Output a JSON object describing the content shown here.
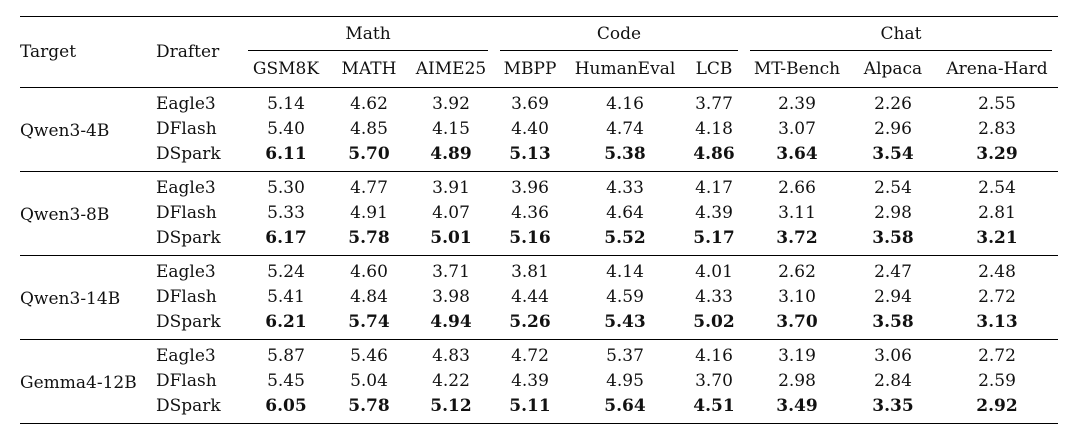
{
  "header": {
    "target": "Target",
    "drafter": "Drafter",
    "groups": [
      {
        "label": "Math",
        "columns": [
          "GSM8K",
          "MATH",
          "AIME25"
        ]
      },
      {
        "label": "Code",
        "columns": [
          "MBPP",
          "HumanEval",
          "LCB"
        ]
      },
      {
        "label": "Chat",
        "columns": [
          "MT-Bench",
          "Alpaca",
          "Arena-Hard"
        ]
      }
    ]
  },
  "rows": [
    {
      "target": "Qwen3-4B",
      "drafters": [
        {
          "name": "Eagle3",
          "values": [
            "5.14",
            "4.62",
            "3.92",
            "3.69",
            "4.16",
            "3.77",
            "2.39",
            "2.26",
            "2.55"
          ],
          "bold": false
        },
        {
          "name": "DFlash",
          "values": [
            "5.40",
            "4.85",
            "4.15",
            "4.40",
            "4.74",
            "4.18",
            "3.07",
            "2.96",
            "2.83"
          ],
          "bold": false
        },
        {
          "name": "DSpark",
          "values": [
            "6.11",
            "5.70",
            "4.89",
            "5.13",
            "5.38",
            "4.86",
            "3.64",
            "3.54",
            "3.29"
          ],
          "bold": true
        }
      ]
    },
    {
      "target": "Qwen3-8B",
      "drafters": [
        {
          "name": "Eagle3",
          "values": [
            "5.30",
            "4.77",
            "3.91",
            "3.96",
            "4.33",
            "4.17",
            "2.66",
            "2.54",
            "2.54"
          ],
          "bold": false
        },
        {
          "name": "DFlash",
          "values": [
            "5.33",
            "4.91",
            "4.07",
            "4.36",
            "4.64",
            "4.39",
            "3.11",
            "2.98",
            "2.81"
          ],
          "bold": false
        },
        {
          "name": "DSpark",
          "values": [
            "6.17",
            "5.78",
            "5.01",
            "5.16",
            "5.52",
            "5.17",
            "3.72",
            "3.58",
            "3.21"
          ],
          "bold": true
        }
      ]
    },
    {
      "target": "Qwen3-14B",
      "drafters": [
        {
          "name": "Eagle3",
          "values": [
            "5.24",
            "4.60",
            "3.71",
            "3.81",
            "4.14",
            "4.01",
            "2.62",
            "2.47",
            "2.48"
          ],
          "bold": false
        },
        {
          "name": "DFlash",
          "values": [
            "5.41",
            "4.84",
            "3.98",
            "4.44",
            "4.59",
            "4.33",
            "3.10",
            "2.94",
            "2.72"
          ],
          "bold": false
        },
        {
          "name": "DSpark",
          "values": [
            "6.21",
            "5.74",
            "4.94",
            "5.26",
            "5.43",
            "5.02",
            "3.70",
            "3.58",
            "3.13"
          ],
          "bold": true
        }
      ]
    },
    {
      "target": "Gemma4-12B",
      "drafters": [
        {
          "name": "Eagle3",
          "values": [
            "5.87",
            "5.46",
            "4.83",
            "4.72",
            "5.37",
            "4.16",
            "3.19",
            "3.06",
            "2.72"
          ],
          "bold": false
        },
        {
          "name": "DFlash",
          "values": [
            "5.45",
            "5.04",
            "4.22",
            "4.39",
            "4.95",
            "3.70",
            "2.98",
            "2.84",
            "2.59"
          ],
          "bold": false
        },
        {
          "name": "DSpark",
          "values": [
            "6.05",
            "5.78",
            "5.12",
            "5.11",
            "5.64",
            "4.51",
            "3.49",
            "3.35",
            "2.92"
          ],
          "bold": true
        }
      ]
    }
  ]
}
